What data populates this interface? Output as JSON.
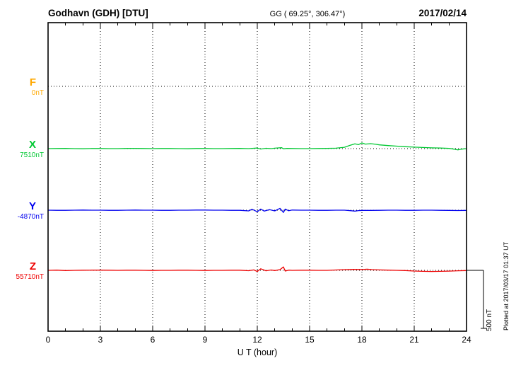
{
  "header": {
    "station": "Godhavn (GDH)  [DTU]",
    "coords": "GG ( 69.25°, 306.47°)",
    "date": "2017/02/14"
  },
  "axes": {
    "x_label": "U T (hour)",
    "x_ticks": [
      "0",
      "3",
      "6",
      "9",
      "12",
      "15",
      "18",
      "21",
      "24"
    ]
  },
  "components": [
    {
      "name": "F",
      "baseline_label": "0nT",
      "color": "#ffa800"
    },
    {
      "name": "X",
      "baseline_label": "7510nT",
      "color": "#00c832"
    },
    {
      "name": "Y",
      "baseline_label": "-4870nT",
      "color": "#0000ee"
    },
    {
      "name": "Z",
      "baseline_label": "55710nT",
      "color": "#ee0000"
    }
  ],
  "scale_bar": {
    "label": "500 nT",
    "nT": 500
  },
  "footer_note": "Plotted at 2017/03/17 01:37 UT",
  "chart_data": {
    "type": "line",
    "title": "Godhavn (GDH) [DTU] magnetogram",
    "subtitle": "GG ( 69.25°, 306.47°)",
    "date": "2017/02/14",
    "xlabel": "U T (hour)",
    "x_range": [
      0,
      24
    ],
    "x_tick_interval": 3,
    "grid": "dotted",
    "scale_nT_per_division": 500,
    "series": [
      {
        "name": "F",
        "baseline_nT": 0,
        "color": "#ffa800",
        "points": null
      },
      {
        "name": "X",
        "baseline_nT": 7510,
        "color": "#00c832",
        "points": [
          [
            0,
            0
          ],
          [
            0.5,
            1
          ],
          [
            1,
            2
          ],
          [
            1.5,
            0
          ],
          [
            2,
            -1
          ],
          [
            2.5,
            1
          ],
          [
            3,
            1
          ],
          [
            3.5,
            0
          ],
          [
            4,
            0
          ],
          [
            4.5,
            2
          ],
          [
            5,
            2
          ],
          [
            5.5,
            1
          ],
          [
            6,
            0
          ],
          [
            6.5,
            1
          ],
          [
            7,
            1
          ],
          [
            7.5,
            0
          ],
          [
            8,
            -1
          ],
          [
            8.5,
            1
          ],
          [
            9,
            1
          ],
          [
            9.5,
            0
          ],
          [
            10,
            0
          ],
          [
            10.5,
            1
          ],
          [
            11,
            2
          ],
          [
            11.5,
            0
          ],
          [
            12,
            5
          ],
          [
            12.2,
            -4
          ],
          [
            12.5,
            3
          ],
          [
            12.8,
            0
          ],
          [
            13,
            4
          ],
          [
            13.4,
            8
          ],
          [
            13.5,
            -2
          ],
          [
            13.7,
            2
          ],
          [
            14,
            1
          ],
          [
            14.5,
            0
          ],
          [
            15,
            0
          ],
          [
            15.5,
            1
          ],
          [
            16,
            2
          ],
          [
            16.5,
            4
          ],
          [
            17,
            12
          ],
          [
            17.3,
            28
          ],
          [
            17.6,
            42
          ],
          [
            17.8,
            35
          ],
          [
            18,
            50
          ],
          [
            18.2,
            40
          ],
          [
            18.5,
            44
          ],
          [
            18.8,
            38
          ],
          [
            19,
            33
          ],
          [
            19.5,
            27
          ],
          [
            20,
            22
          ],
          [
            20.5,
            17
          ],
          [
            21,
            13
          ],
          [
            21.5,
            10
          ],
          [
            22,
            7
          ],
          [
            22.5,
            5
          ],
          [
            23,
            2
          ],
          [
            23.3,
            -5
          ],
          [
            23.5,
            -11
          ],
          [
            23.7,
            -5
          ],
          [
            24,
            0
          ]
        ]
      },
      {
        "name": "Y",
        "baseline_nT": -4870,
        "color": "#0000ee",
        "points": [
          [
            0,
            0
          ],
          [
            0.5,
            -1
          ],
          [
            1,
            -1
          ],
          [
            1.5,
            0
          ],
          [
            2,
            1
          ],
          [
            2.5,
            0
          ],
          [
            3,
            0
          ],
          [
            3.5,
            -1
          ],
          [
            4,
            -1
          ],
          [
            4.5,
            0
          ],
          [
            5,
            1
          ],
          [
            5.5,
            0
          ],
          [
            6,
            0
          ],
          [
            6.5,
            -1
          ],
          [
            7,
            -1
          ],
          [
            7.5,
            0
          ],
          [
            8,
            0
          ],
          [
            8.5,
            1
          ],
          [
            9,
            1
          ],
          [
            9.5,
            0
          ],
          [
            10,
            0
          ],
          [
            10.5,
            -1
          ],
          [
            11,
            -1
          ],
          [
            11.5,
            -6
          ],
          [
            11.7,
            8
          ],
          [
            12,
            -14
          ],
          [
            12.2,
            10
          ],
          [
            12.4,
            -8
          ],
          [
            12.7,
            5
          ],
          [
            13,
            -6
          ],
          [
            13.3,
            16
          ],
          [
            13.5,
            -20
          ],
          [
            13.6,
            10
          ],
          [
            13.8,
            -5
          ],
          [
            14,
            1
          ],
          [
            14.5,
            0
          ],
          [
            15,
            0
          ],
          [
            15.5,
            -1
          ],
          [
            16,
            -1
          ],
          [
            16.5,
            0
          ],
          [
            17,
            0
          ],
          [
            17.4,
            -5
          ],
          [
            17.6,
            -8
          ],
          [
            17.8,
            -4
          ],
          [
            18,
            -2
          ],
          [
            18.5,
            -2
          ],
          [
            19,
            -1
          ],
          [
            19.5,
            0
          ],
          [
            20,
            0
          ],
          [
            20.5,
            -1
          ],
          [
            21,
            -1
          ],
          [
            21.5,
            0
          ],
          [
            22,
            0
          ],
          [
            22.5,
            -1
          ],
          [
            23,
            -2
          ],
          [
            23.5,
            -3
          ],
          [
            24,
            -2
          ]
        ]
      },
      {
        "name": "Z",
        "baseline_nT": 55710,
        "color": "#ee0000",
        "points": [
          [
            0,
            0
          ],
          [
            0.5,
            2
          ],
          [
            1,
            -2
          ],
          [
            1.5,
            0
          ],
          [
            2,
            1
          ],
          [
            2.5,
            2
          ],
          [
            3,
            2
          ],
          [
            3.5,
            1
          ],
          [
            4,
            0
          ],
          [
            4.5,
            1
          ],
          [
            5,
            1
          ],
          [
            5.5,
            0
          ],
          [
            6,
            -1
          ],
          [
            6.5,
            0
          ],
          [
            7,
            0
          ],
          [
            7.5,
            1
          ],
          [
            8,
            1
          ],
          [
            8.5,
            0
          ],
          [
            9,
            -1
          ],
          [
            9.5,
            0
          ],
          [
            10,
            0
          ],
          [
            10.5,
            1
          ],
          [
            11,
            1
          ],
          [
            11.5,
            -3
          ],
          [
            11.8,
            4
          ],
          [
            12,
            -10
          ],
          [
            12.2,
            14
          ],
          [
            12.5,
            -4
          ],
          [
            12.8,
            3
          ],
          [
            13,
            -2
          ],
          [
            13.3,
            6
          ],
          [
            13.5,
            30
          ],
          [
            13.6,
            -6
          ],
          [
            13.8,
            2
          ],
          [
            14,
            0
          ],
          [
            14.5,
            1
          ],
          [
            15,
            1
          ],
          [
            15.5,
            0
          ],
          [
            16,
            0
          ],
          [
            16.5,
            3
          ],
          [
            17,
            6
          ],
          [
            17.5,
            9
          ],
          [
            18,
            7
          ],
          [
            18.3,
            10
          ],
          [
            18.6,
            6
          ],
          [
            19,
            4
          ],
          [
            19.5,
            2
          ],
          [
            20,
            0
          ],
          [
            20.5,
            -2
          ],
          [
            21,
            -6
          ],
          [
            21.5,
            -9
          ],
          [
            22,
            -10
          ],
          [
            22.5,
            -9
          ],
          [
            23,
            -7
          ],
          [
            23.5,
            -4
          ],
          [
            24,
            -2
          ]
        ]
      }
    ]
  }
}
